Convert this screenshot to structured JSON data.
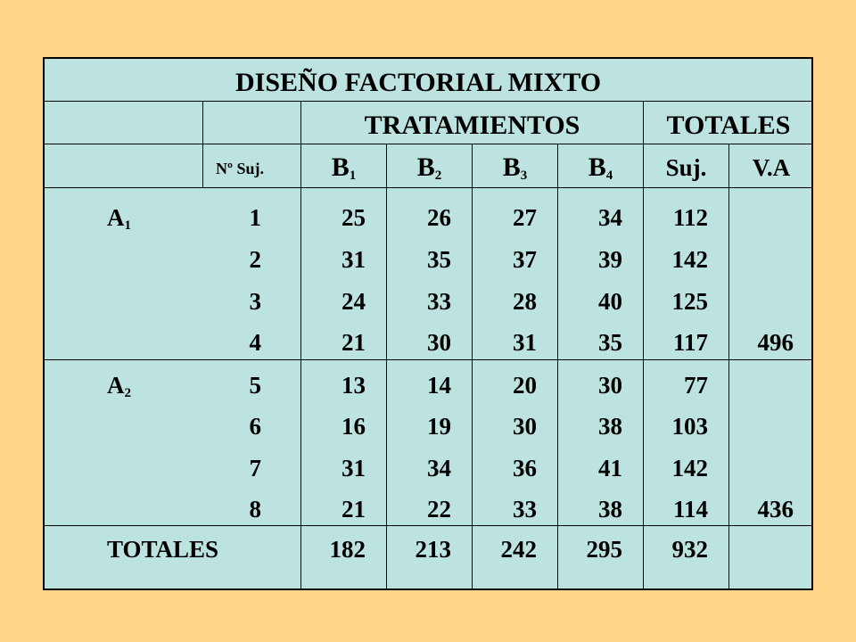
{
  "title": "DISEÑO FACTORIAL MIXTO",
  "headers": {
    "tratamientos": "TRATAMIENTOS",
    "totales": "TOTALES",
    "nsuj": "Nº Suj.",
    "b_letter": "B",
    "b_subs": [
      "1",
      "2",
      "3",
      "4"
    ],
    "suj": "Suj.",
    "va": "V.A"
  },
  "groups": [
    {
      "letter": "A",
      "sub": "1",
      "total_va": "496",
      "rows": [
        {
          "suj": "1",
          "b": [
            "25",
            "26",
            "27",
            "34"
          ],
          "total": "112"
        },
        {
          "suj": "2",
          "b": [
            "31",
            "35",
            "37",
            "39"
          ],
          "total": "142"
        },
        {
          "suj": "3",
          "b": [
            "24",
            "33",
            "28",
            "40"
          ],
          "total": "125"
        },
        {
          "suj": "4",
          "b": [
            "21",
            "30",
            "31",
            "35"
          ],
          "total": "117"
        }
      ]
    },
    {
      "letter": "A",
      "sub": "2",
      "total_va": "436",
      "rows": [
        {
          "suj": "5",
          "b": [
            "13",
            "14",
            "20",
            "30"
          ],
          "total": "77"
        },
        {
          "suj": "6",
          "b": [
            "16",
            "19",
            "30",
            "38"
          ],
          "total": "103"
        },
        {
          "suj": "7",
          "b": [
            "31",
            "34",
            "36",
            "41"
          ],
          "total": "142"
        },
        {
          "suj": "8",
          "b": [
            "21",
            "22",
            "33",
            "38"
          ],
          "total": "114"
        }
      ]
    }
  ],
  "footer": {
    "label": "TOTALES",
    "b_totals": [
      "182",
      "213",
      "242",
      "295"
    ],
    "grand_total": "932"
  }
}
